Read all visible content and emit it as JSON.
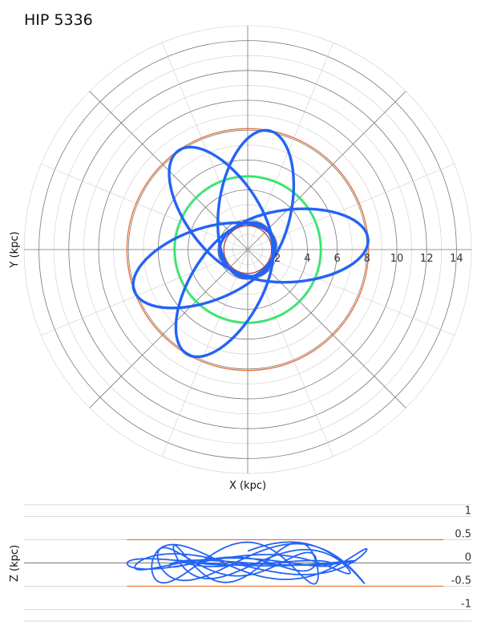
{
  "title": "HIP 5336",
  "colors": {
    "orbit": "#2463f5",
    "outer_ring": "#e8743b",
    "mid_ring": "#2fe86a",
    "inner_ring": "#b24a4a",
    "grid_dark": "#777777",
    "grid_light": "#cccccc"
  },
  "chart_data": [
    {
      "type": "polar-orbit",
      "xlabel": "X (kpc)",
      "ylabel": "Y (kpc)",
      "rmax": 15,
      "radial_ticks": [
        2,
        4,
        6,
        8,
        10,
        12,
        14
      ],
      "radial_tick_labels": [
        "2",
        "4",
        "6",
        "8",
        "10",
        "12",
        "14"
      ],
      "grid": true,
      "reference_circles": [
        {
          "name": "outer",
          "radius": 8.1
        },
        {
          "name": "mid",
          "radius": 4.9
        },
        {
          "name": "inner",
          "radius": 1.6
        }
      ],
      "orbit": {
        "apocenter": 8.1,
        "pericenter": 1.9,
        "petals": 5,
        "orientations_deg": [
          5,
          80,
          125,
          200,
          240
        ]
      }
    },
    {
      "type": "line",
      "xlabel": "",
      "ylabel": "Z (kpc)",
      "ylim": [
        -1.25,
        1.25
      ],
      "y_ticks": [
        1,
        0.5,
        0,
        -0.5,
        -1
      ],
      "y_tick_labels": [
        "1",
        "0.5",
        "0",
        "-0.5",
        "-1"
      ],
      "xlim": [
        -15,
        15
      ],
      "band": [
        -0.5,
        0.5
      ],
      "orbit_x_range": [
        -8.1,
        8.1
      ],
      "orbit_z_amplitude": 0.45
    }
  ]
}
